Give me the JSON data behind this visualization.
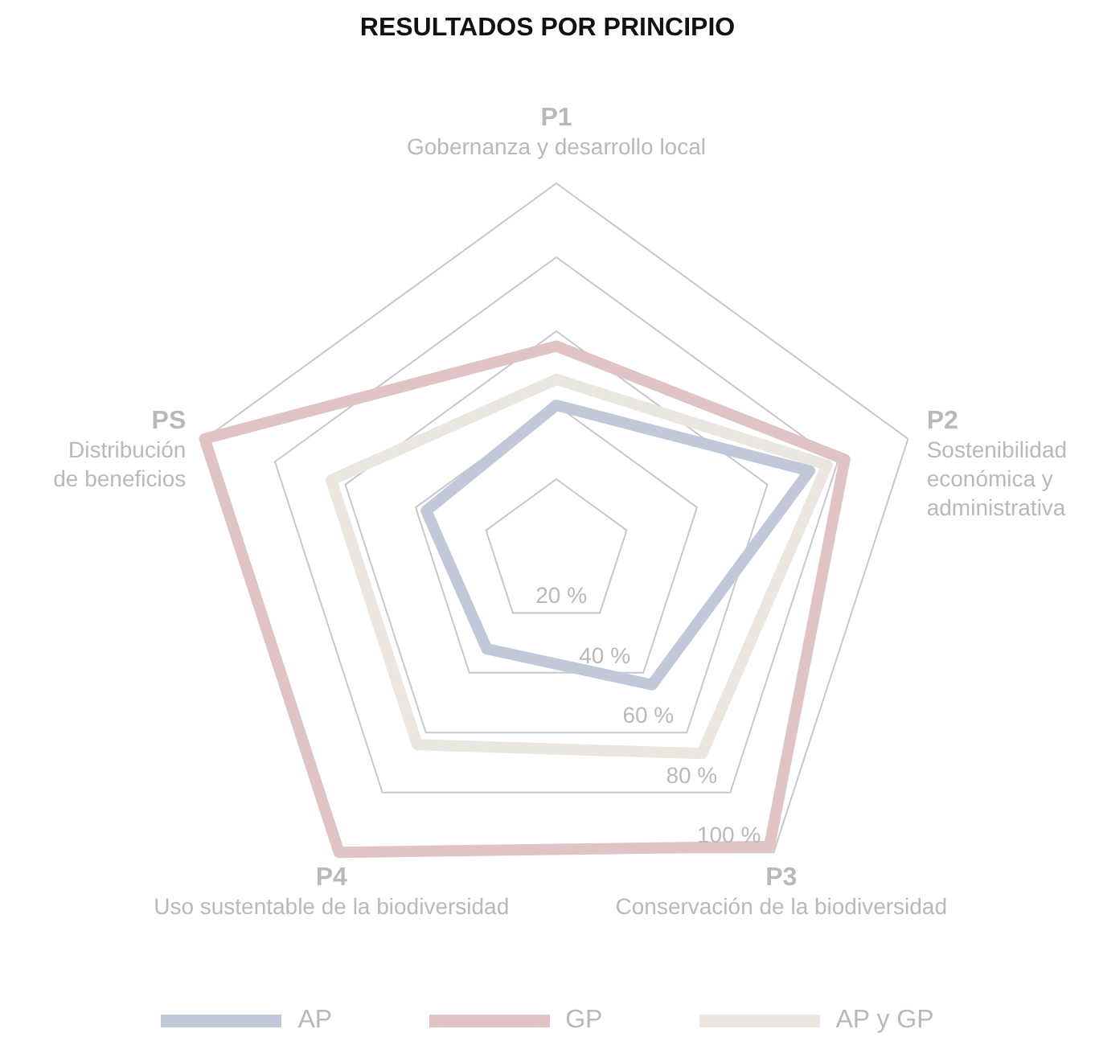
{
  "chart_data": {
    "type": "radar",
    "title": "RESULTADOS POR PRINCIPIO",
    "categories": [
      "P1\nGobernanza y desarrollo local",
      "P2\nSostenibilidad\neconómica y\nadministrativa",
      "P3\nConservación de la biodiversidad",
      "P4\nUso sustentable de la biodiversidad",
      "PS\nDistribución\nde beneficios"
    ],
    "series": [
      {
        "name": "AP",
        "color": "#c0c8da",
        "values": [
          40,
          72,
          44,
          32,
          37
        ]
      },
      {
        "name": "GP",
        "color": "#dfc3c5",
        "values": [
          56,
          82,
          98,
          100,
          100
        ]
      },
      {
        "name": "AP y GP",
        "color": "#ebe6e0",
        "values": [
          47,
          77,
          67,
          64,
          64
        ]
      }
    ],
    "ylim": [
      0,
      100
    ],
    "yticks": [
      {
        "value": 20,
        "label": "20 %"
      },
      {
        "value": 40,
        "label": "40 %"
      },
      {
        "value": 60,
        "label": "60 %"
      },
      {
        "value": 80,
        "label": "80 %"
      },
      {
        "value": 100,
        "label": "100 %"
      }
    ],
    "grid": true,
    "legend": "bottom"
  }
}
